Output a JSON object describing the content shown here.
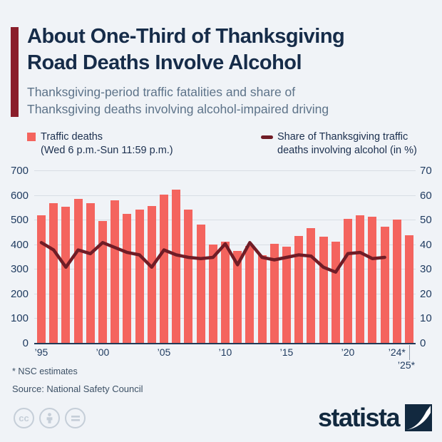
{
  "header": {
    "title_line1": "About One-Third of Thanksgiving",
    "title_line2": "Road Deaths Involve Alcohol",
    "subtitle_line1": "Thanksgiving-period traffic fatalities and share of",
    "subtitle_line2": "Thanksgiving deaths involving alcohol-impaired driving"
  },
  "legend": {
    "bars_line1": "Traffic deaths",
    "bars_line2": "(Wed 6 p.m.-Sun 11:59 p.m.)",
    "line_line1": "Share of Thanksgiving traffic",
    "line_line2": "deaths involving alcohol (in %)"
  },
  "chart_data": {
    "type": "bar+line",
    "x": [
      1995,
      1996,
      1997,
      1998,
      1999,
      2000,
      2001,
      2002,
      2003,
      2004,
      2005,
      2006,
      2007,
      2008,
      2009,
      2010,
      2011,
      2012,
      2013,
      2014,
      2015,
      2016,
      2017,
      2018,
      2019,
      2020,
      2021,
      2022,
      2023,
      2024,
      2025
    ],
    "series": [
      {
        "name": "Traffic deaths (Wed 6 p.m.-Sun 11:59 p.m.)",
        "type": "bar",
        "axis": "left",
        "values": [
          520,
          571,
          555,
          588,
          569,
          497,
          581,
          527,
          544,
          557,
          606,
          624,
          543,
          484,
          403,
          415,
          375,
          395,
          360,
          405,
          393,
          438,
          469,
          434,
          413,
          506,
          521,
          516,
          474,
          503,
          440
        ]
      },
      {
        "name": "Share of Thanksgiving traffic deaths involving alcohol (in %)",
        "type": "line",
        "axis": "right",
        "values": [
          41,
          38,
          31,
          38,
          36.5,
          41,
          39,
          37,
          36,
          31,
          38,
          36,
          35,
          34.5,
          35,
          40.5,
          32,
          41,
          35,
          34,
          35,
          36,
          35.5,
          31,
          29,
          36.5,
          37,
          34.5,
          35,
          null,
          null
        ]
      }
    ],
    "left_axis": {
      "min": 0,
      "max": 700,
      "ticks": [
        0,
        100,
        200,
        300,
        400,
        500,
        600,
        700
      ]
    },
    "right_axis": {
      "min": 0,
      "max": 70,
      "ticks": [
        0,
        10,
        20,
        30,
        40,
        50,
        60,
        70
      ]
    },
    "x_ticks": [
      {
        "label": "’95",
        "index": 0,
        "row": 1
      },
      {
        "label": "’00",
        "index": 5,
        "row": 1
      },
      {
        "label": "’05",
        "index": 10,
        "row": 1
      },
      {
        "label": "’10",
        "index": 15,
        "row": 1
      },
      {
        "label": "’15",
        "index": 20,
        "row": 1
      },
      {
        "label": "’20",
        "index": 25,
        "row": 1
      },
      {
        "label": "’24*",
        "index": 29,
        "row": 1
      },
      {
        "label": "’25*",
        "index": 30,
        "row": 2
      }
    ],
    "grid": true,
    "legend_position": "top",
    "colors": {
      "bar": "#f4645e",
      "line": "#701c26",
      "gridline": "#d8dde4",
      "baseline": "#223a57",
      "accent": "#8a1e2b"
    }
  },
  "footer": {
    "footnote": "* NSC estimates",
    "source": "Source: National Safety Council",
    "brand": "statista",
    "cc_label": "cc"
  }
}
